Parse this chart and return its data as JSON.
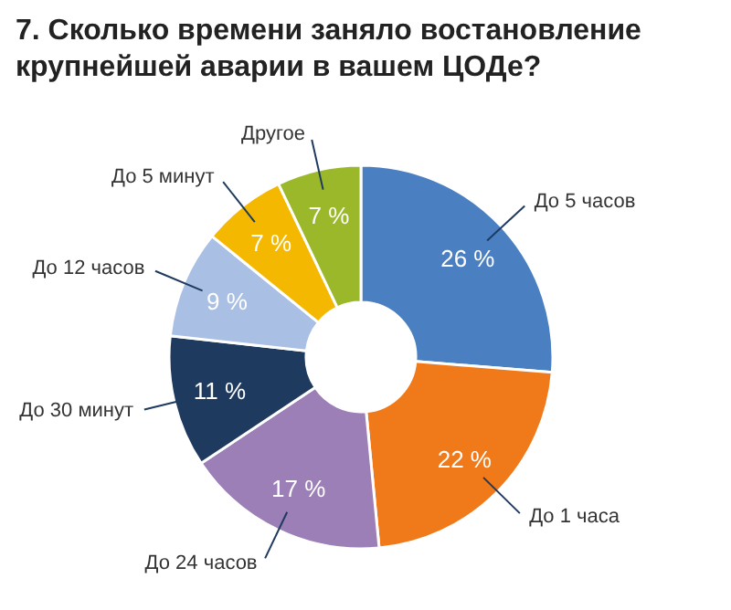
{
  "chart_data": {
    "type": "donut",
    "title": "7. Сколько времени заняло востановление крупнейшей аварии в вашем ЦОДе?",
    "categories": [
      "До 5 часов",
      "До 1 часа",
      "До 24 часов",
      "До 30 минут",
      "До 12 часов",
      "До 5 минут",
      "Другое"
    ],
    "values": [
      26,
      22,
      17,
      11,
      9,
      7,
      7
    ],
    "value_labels": [
      "26 %",
      "22 %",
      "17 %",
      "11 %",
      "9 %",
      "7 %",
      "7 %"
    ],
    "colors": [
      "#4a7fc1",
      "#f07a1a",
      "#9b7fb6",
      "#1f3a5f",
      "#a9bfe3",
      "#f5b800",
      "#9ab82a"
    ]
  }
}
